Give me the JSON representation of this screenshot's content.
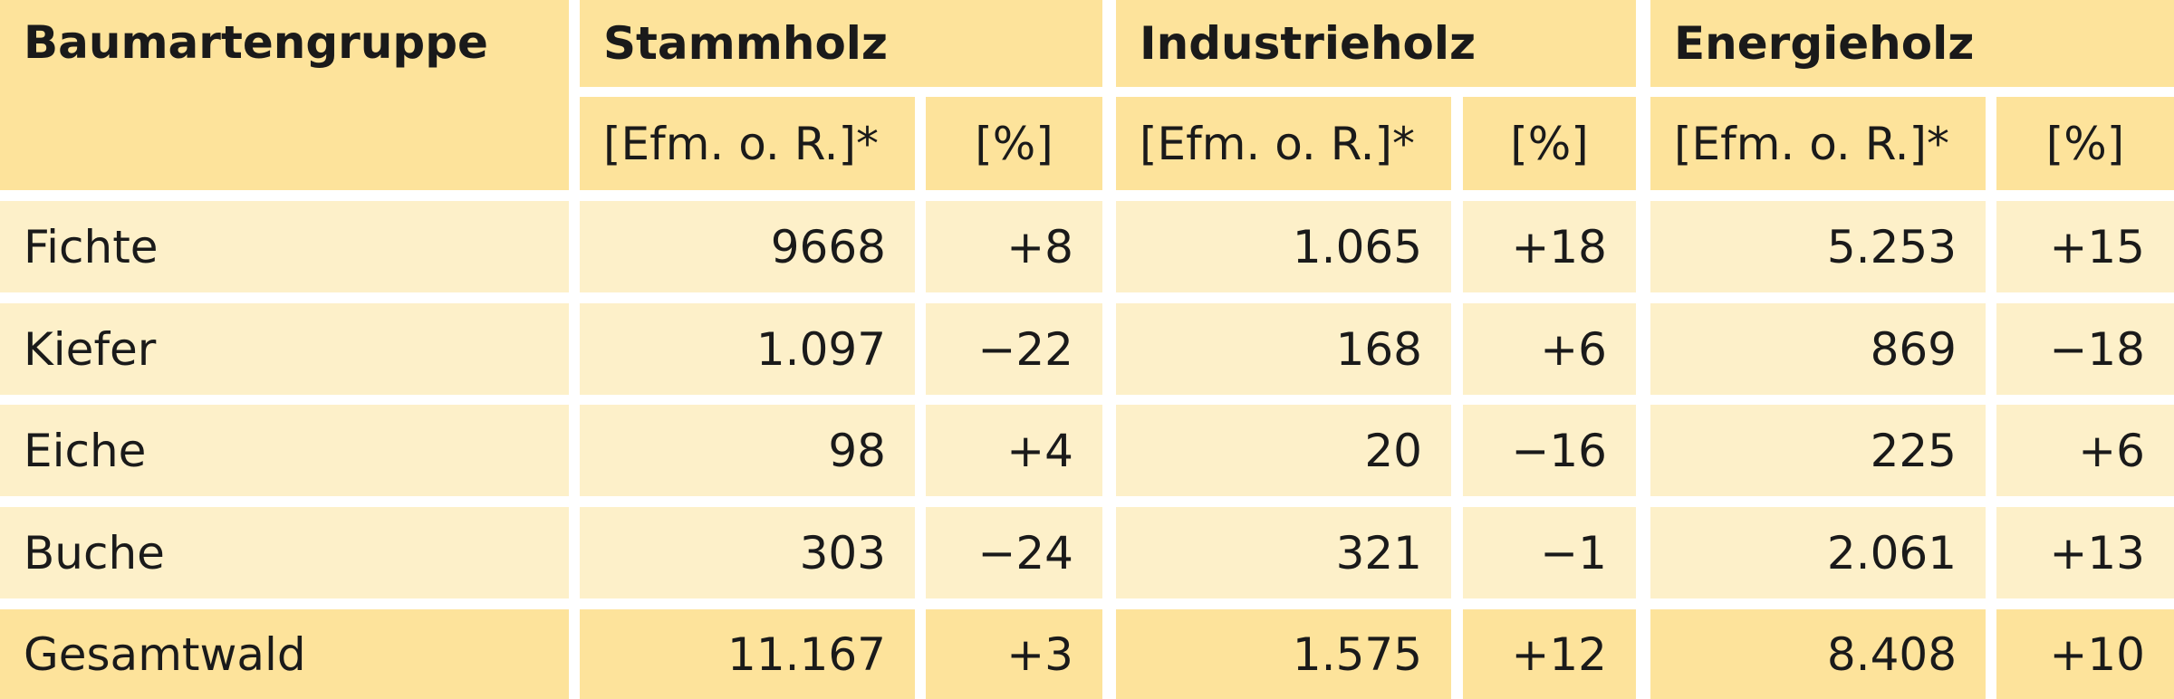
{
  "table": {
    "header": {
      "first": "Baumartengruppe",
      "groups": [
        "Stammholz",
        "Industrieholz",
        "Energieholz"
      ],
      "units": [
        "[Efm. o. R.]*",
        "[%]",
        "[Efm. o. R.]*",
        "[%]",
        "[Efm. o. R.]*",
        "[%]"
      ]
    },
    "rows": [
      [
        "Fichte",
        "9668",
        "+8",
        "1.065",
        "+18",
        "5.253",
        "+15"
      ],
      [
        "Kiefer",
        "1.097",
        "−22",
        "168",
        "+6",
        "869",
        "−18"
      ],
      [
        "Eiche",
        "98",
        "+4",
        "20",
        "−16",
        "225",
        "+6"
      ],
      [
        "Buche",
        "303",
        "−24",
        "321",
        "−1",
        "2.061",
        "+13"
      ],
      [
        "Gesamtwald",
        "11.167",
        "+3",
        "1.575",
        "+12",
        "8.408",
        "+10"
      ]
    ]
  }
}
